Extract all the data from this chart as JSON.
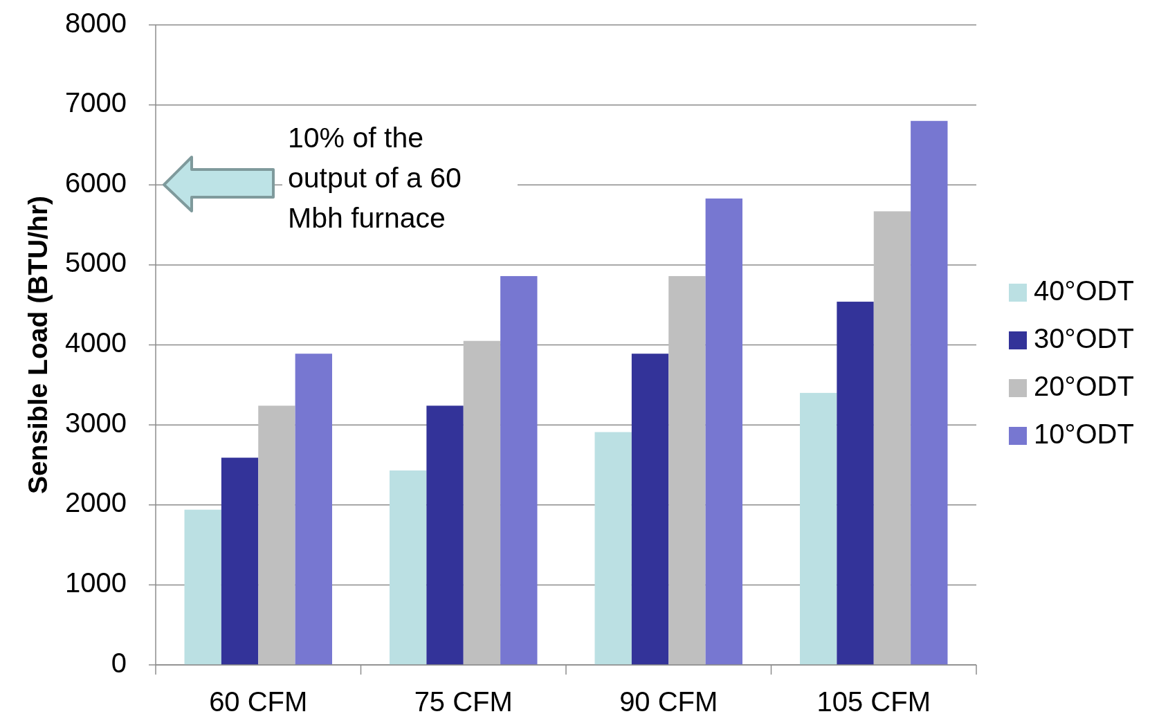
{
  "chart_data": {
    "type": "bar",
    "ylabel": "Sensible Load (BTU/hr)",
    "categories": [
      "60 CFM",
      "75 CFM",
      "90 CFM",
      "105 CFM"
    ],
    "series": [
      {
        "name": "40°ODT",
        "color": "#bbe0e3",
        "values": [
          1940,
          2430,
          2910,
          3400
        ]
      },
      {
        "name": "30°ODT",
        "color": "#333399",
        "values": [
          2590,
          3240,
          3890,
          4540
        ]
      },
      {
        "name": "20°ODT",
        "color": "#bfbfbf",
        "values": [
          3240,
          4050,
          4860,
          5670
        ]
      },
      {
        "name": "10°ODT",
        "color": "#7777d1",
        "values": [
          3890,
          4860,
          5830,
          6800
        ]
      }
    ],
    "ylim": [
      0,
      8000
    ],
    "yticks": [
      0,
      1000,
      2000,
      3000,
      4000,
      5000,
      6000,
      7000,
      8000
    ],
    "grid": "y",
    "legend": "right",
    "annotations": [
      "10% of the\noutput of a 60\nMbh furnace"
    ]
  }
}
